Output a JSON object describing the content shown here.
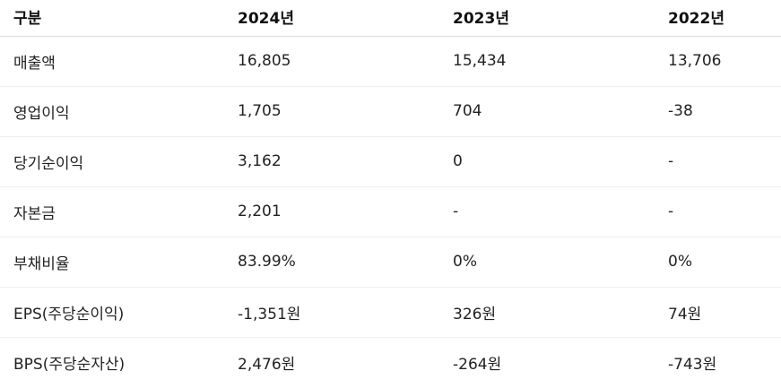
{
  "table": {
    "headers": [
      "구분",
      "2024년",
      "2023년",
      "2022년"
    ],
    "rows": [
      [
        "매출액",
        "16,805",
        "15,434",
        "13,706"
      ],
      [
        "영업이익",
        "1,705",
        "704",
        "-38"
      ],
      [
        "당기순이익",
        "3,162",
        "0",
        "-"
      ],
      [
        "자본금",
        "2,201",
        "-",
        "-"
      ],
      [
        "부채비율",
        "83.99%",
        "0%",
        "0%"
      ],
      [
        "EPS(주당순이익)",
        "-1,351원",
        "326원",
        "74원"
      ],
      [
        "BPS(주당순자산)",
        "2,476원",
        "-264원",
        "-743원"
      ]
    ]
  }
}
